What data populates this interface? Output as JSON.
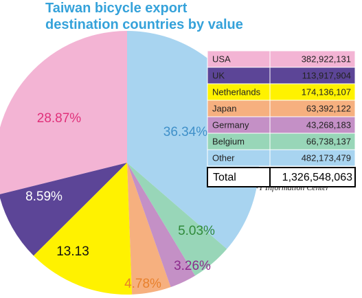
{
  "chart_data": {
    "type": "pie",
    "title": [
      "Taiwan bicycle export",
      "destination countries by value"
    ],
    "categories": [
      "USA",
      "UK",
      "Netherlands",
      "Japan",
      "Germany",
      "Belgium",
      "Other"
    ],
    "values": [
      28.87,
      8.59,
      13.13,
      4.78,
      3.26,
      5.03,
      36.34
    ],
    "value_labels": [
      "28.87%",
      "8.59%",
      "13.13",
      "4.78%",
      "3.26%",
      "5.03%",
      "36.34%"
    ],
    "colors": [
      "#f3b4d4",
      "#5c4597",
      "#fff200",
      "#f6b07f",
      "#c490c6",
      "#98d6b8",
      "#a8d4f0"
    ],
    "label_colors": [
      "#e0307a",
      "#ffffff",
      "#111111",
      "#e8802c",
      "#8c2a8c",
      "#2f8a3a",
      "#3f90c9"
    ],
    "amounts": [
      "382,922,131",
      "113,917,904",
      "174,136,107",
      "63,392,122",
      "43,268,183",
      "66,738,137",
      "482,173,479"
    ],
    "total_label": "Total",
    "total": "1,326,548,063",
    "source": "Source: BoFT Information Center"
  }
}
